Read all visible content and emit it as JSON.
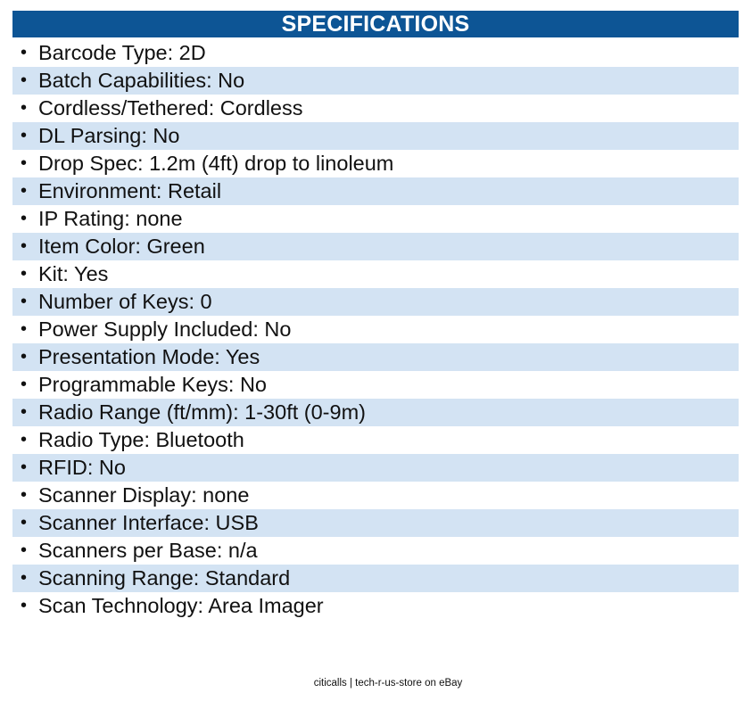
{
  "header": {
    "title": "SPECIFICATIONS"
  },
  "bullet_char": "•",
  "specs": [
    "Barcode Type: 2D",
    "Batch Capabilities: No",
    "Cordless/Tethered: Cordless",
    "DL Parsing: No",
    "Drop Spec: 1.2m (4ft) drop to linoleum",
    "Environment: Retail",
    "IP Rating: none",
    "Item Color: Green",
    "Kit: Yes",
    "Number of Keys: 0",
    "Power Supply Included: No",
    "Presentation Mode: Yes",
    "Programmable Keys: No",
    "Radio Range (ft/mm): 1-30ft (0-9m)",
    "Radio Type: Bluetooth",
    "RFID: No",
    "Scanner Display: none",
    "Scanner Interface: USB",
    "Scanners per Base: n/a",
    "Scanning Range: Standard",
    "Scan Technology: Area Imager"
  ],
  "footer": {
    "text": "citicalls | tech-r-us-store on eBay"
  },
  "colors": {
    "header_bg": "#0d5595",
    "stripe_bg": "#d3e3f3"
  }
}
